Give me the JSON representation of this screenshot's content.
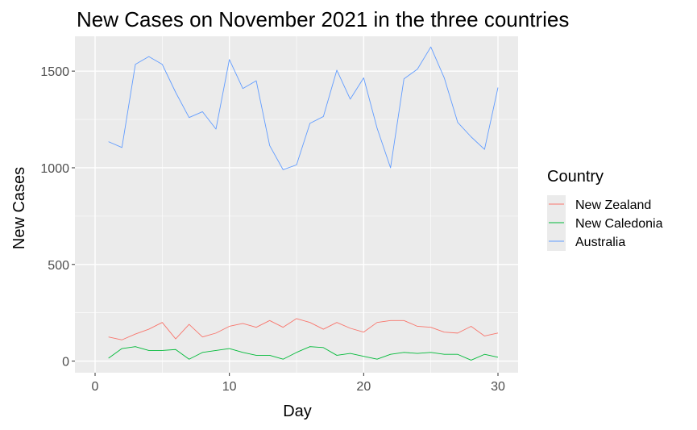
{
  "chart_data": {
    "type": "line",
    "title": "New Cases on November 2021 in the three countries",
    "xlabel": "Day",
    "ylabel": "New Cases",
    "xlim": [
      -1.5,
      31.5
    ],
    "ylim": [
      -60,
      1680
    ],
    "xticks": [
      0,
      10,
      20,
      30
    ],
    "xtick_labels": [
      "0",
      "10",
      "20",
      "30"
    ],
    "yticks": [
      0,
      500,
      1000,
      1500
    ],
    "ytick_labels": [
      "0",
      "500",
      "1000",
      "1500"
    ],
    "grid": true,
    "legend_title": "Country",
    "legend_position": "right",
    "x": [
      1,
      2,
      3,
      4,
      5,
      6,
      7,
      8,
      9,
      10,
      11,
      12,
      13,
      14,
      15,
      16,
      17,
      18,
      19,
      20,
      21,
      22,
      23,
      24,
      25,
      26,
      27,
      28,
      29,
      30
    ],
    "series": [
      {
        "name": "New Zealand",
        "color": "#f8766d",
        "values": [
          125,
          110,
          140,
          165,
          200,
          115,
          190,
          125,
          145,
          180,
          195,
          175,
          210,
          175,
          220,
          200,
          165,
          200,
          170,
          150,
          200,
          210,
          210,
          180,
          175,
          150,
          145,
          180,
          130,
          145
        ]
      },
      {
        "name": "New Caledonia",
        "color": "#00ba38",
        "values": [
          15,
          65,
          75,
          55,
          55,
          60,
          10,
          45,
          55,
          65,
          45,
          30,
          30,
          10,
          45,
          75,
          70,
          30,
          40,
          25,
          10,
          35,
          45,
          40,
          45,
          35,
          35,
          5,
          35,
          20
        ]
      },
      {
        "name": "Australia",
        "color": "#619cff",
        "values": [
          1135,
          1105,
          1535,
          1575,
          1535,
          1390,
          1260,
          1290,
          1200,
          1560,
          1410,
          1450,
          1115,
          990,
          1015,
          1230,
          1265,
          1505,
          1355,
          1465,
          1205,
          1000,
          1460,
          1510,
          1625,
          1465,
          1235,
          1160,
          1095,
          1415
        ]
      }
    ]
  }
}
